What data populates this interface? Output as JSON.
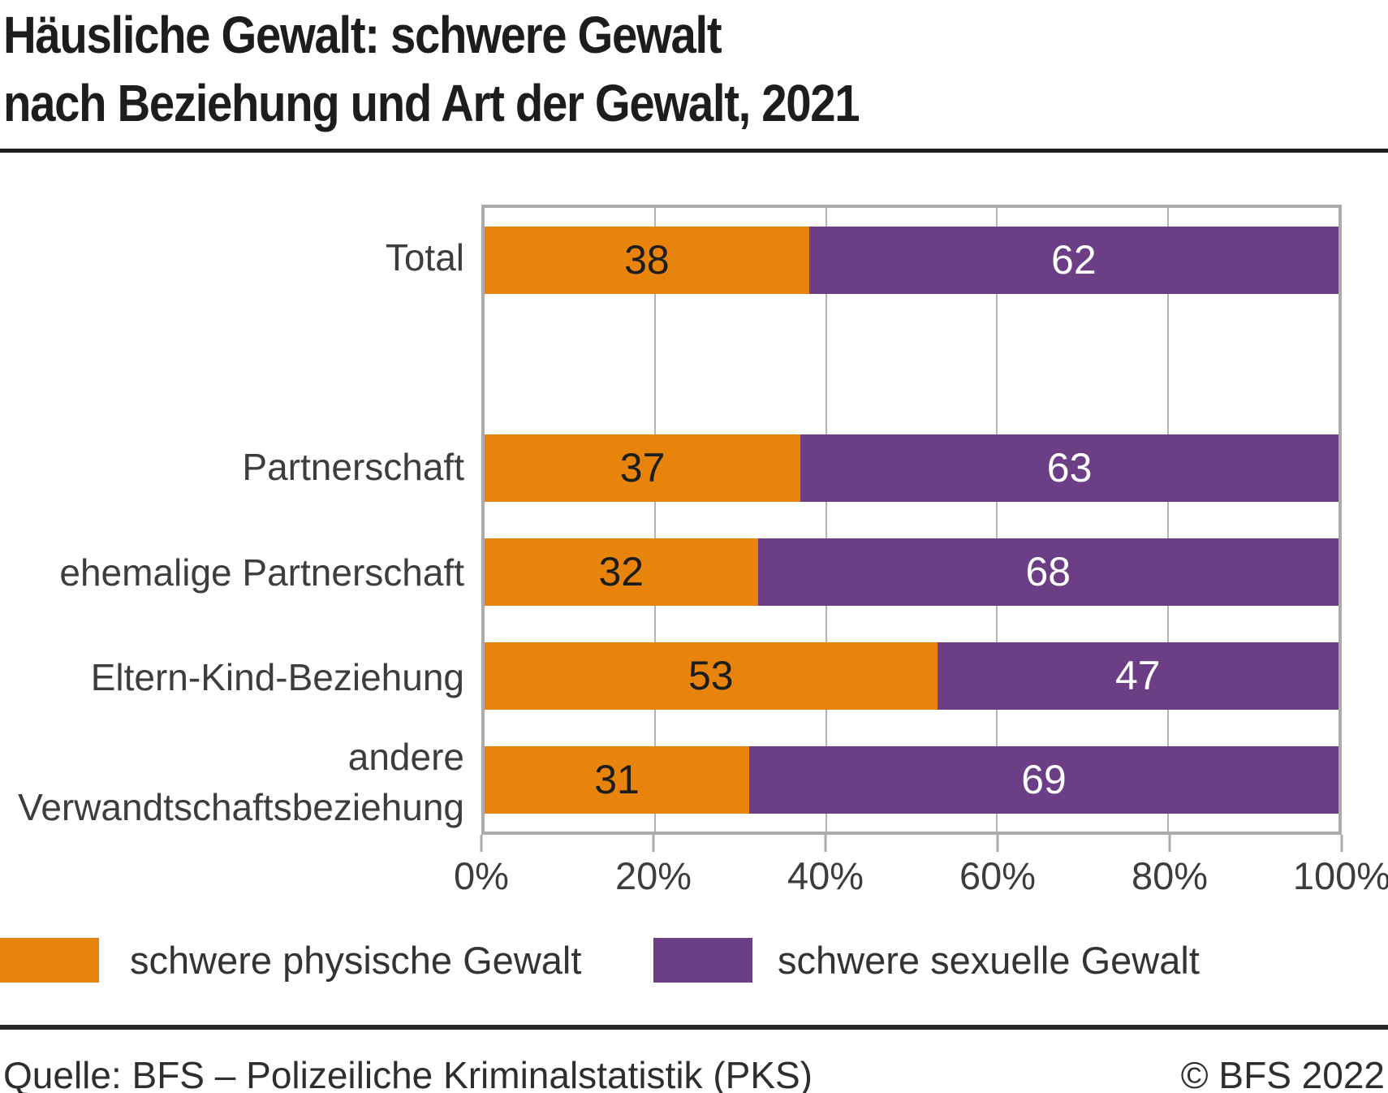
{
  "title": {
    "line1": "Häusliche Gewalt: schwere Gewalt",
    "line2": "nach Beziehung und Art der Gewalt, 2021"
  },
  "chart_data": {
    "type": "bar",
    "stacked": true,
    "orientation": "horizontal",
    "unit": "%",
    "title": "Häusliche Gewalt: schwere Gewalt nach Beziehung und Art der Gewalt, 2021",
    "categories": [
      "Total",
      "Partnerschaft",
      "ehemalige Partnerschaft",
      "Eltern-Kind-Beziehung",
      "andere Verwandtschaftsbeziehung"
    ],
    "series": [
      {
        "name": "schwere physische Gewalt",
        "color": "#e8830c",
        "label_color": "#1d1d1b",
        "values": [
          38,
          37,
          32,
          53,
          31
        ]
      },
      {
        "name": "schwere sexuelle Gewalt",
        "color": "#6c3e85",
        "label_color": "#ffffff",
        "values": [
          62,
          63,
          68,
          47,
          69
        ]
      }
    ],
    "x_ticks": [
      "0%",
      "20%",
      "40%",
      "60%",
      "80%",
      "100%"
    ],
    "x_tick_values": [
      0,
      20,
      40,
      60,
      80,
      100
    ],
    "xlim": [
      0,
      100
    ],
    "grid": true,
    "legend_position": "bottom",
    "layout_hints": {
      "empty_row_after_total": true,
      "value_labels": "inside-center"
    }
  },
  "colors": {
    "grid": "#b3b3b3",
    "plot_border": "#ababab",
    "title_text": "#1d1d1b",
    "axis_text": "#3d3d3d",
    "footer_text": "#2e2e2e"
  },
  "footer": {
    "source": "Quelle: BFS – Polizeiliche Kriminalstatistik (PKS)",
    "copyright": "© BFS 2022"
  }
}
